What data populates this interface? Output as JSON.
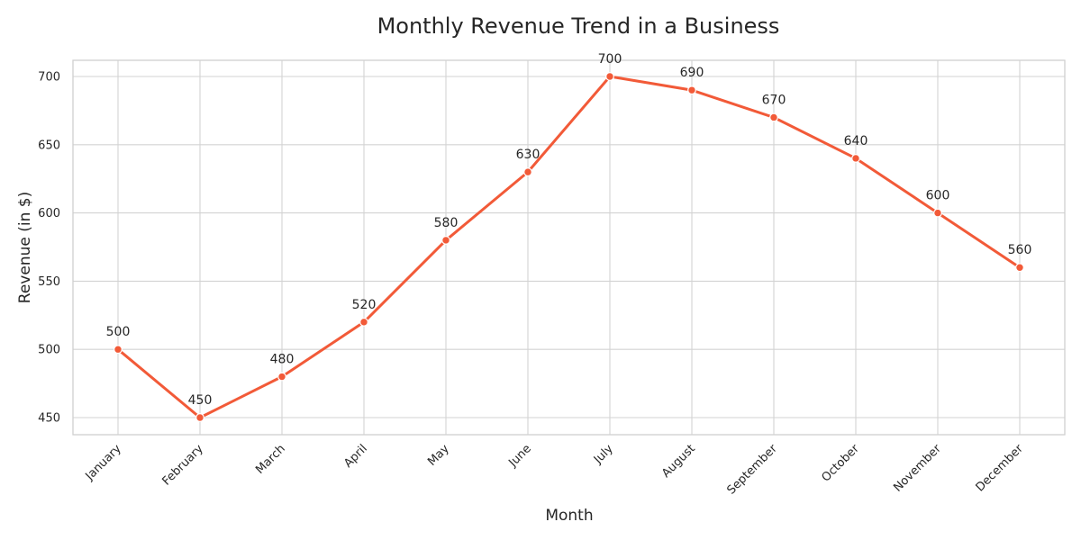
{
  "chart_data": {
    "type": "line",
    "title": "Monthly Revenue Trend in a Business",
    "xlabel": "Month",
    "ylabel": "Revenue (in $)",
    "categories": [
      "January",
      "February",
      "March",
      "April",
      "May",
      "June",
      "July",
      "August",
      "September",
      "October",
      "November",
      "December"
    ],
    "series": [
      {
        "values": [
          500,
          450,
          480,
          520,
          580,
          630,
          700,
          690,
          670,
          640,
          600,
          560
        ]
      }
    ],
    "yticks": [
      450,
      500,
      550,
      600,
      650,
      700
    ],
    "ylim": [
      438,
      712
    ],
    "grid": true,
    "line_color": "#f25a38",
    "marker": "circle",
    "data_labels": true
  }
}
